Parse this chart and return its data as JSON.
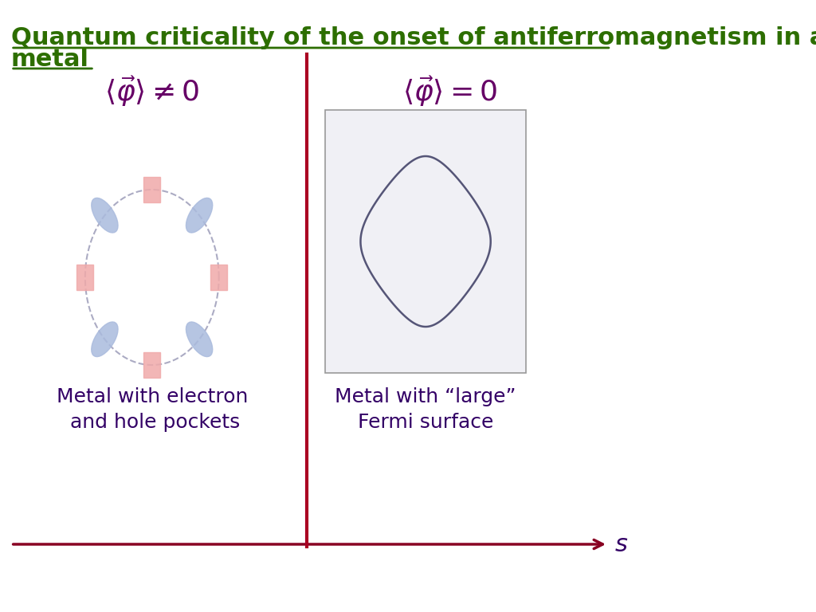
{
  "title_line1": "Quantum criticality of the onset of antiferromagnetism in a",
  "title_line2": "metal",
  "title_color": "#2d6e00",
  "title_underline_color": "#2d6e00",
  "divider_color": "#aa0022",
  "bg_color": "#ffffff",
  "left_label_math": "\\langle\\vec{\\varphi}\\rangle \\neq 0",
  "right_label_math": "\\langle\\vec{\\varphi}\\rangle = 0",
  "label_color": "#660066",
  "electron_pocket_color": "#aabbdd",
  "hole_pocket_color": "#f0aaaa",
  "fermi_line_color": "#555577",
  "bottom_text_color": "#330066",
  "arrow_color": "#880022",
  "s_label_color": "#330066",
  "left_caption": "Metal with electron\n and hole pockets",
  "right_caption": "Metal with “large”\nFermi surface"
}
